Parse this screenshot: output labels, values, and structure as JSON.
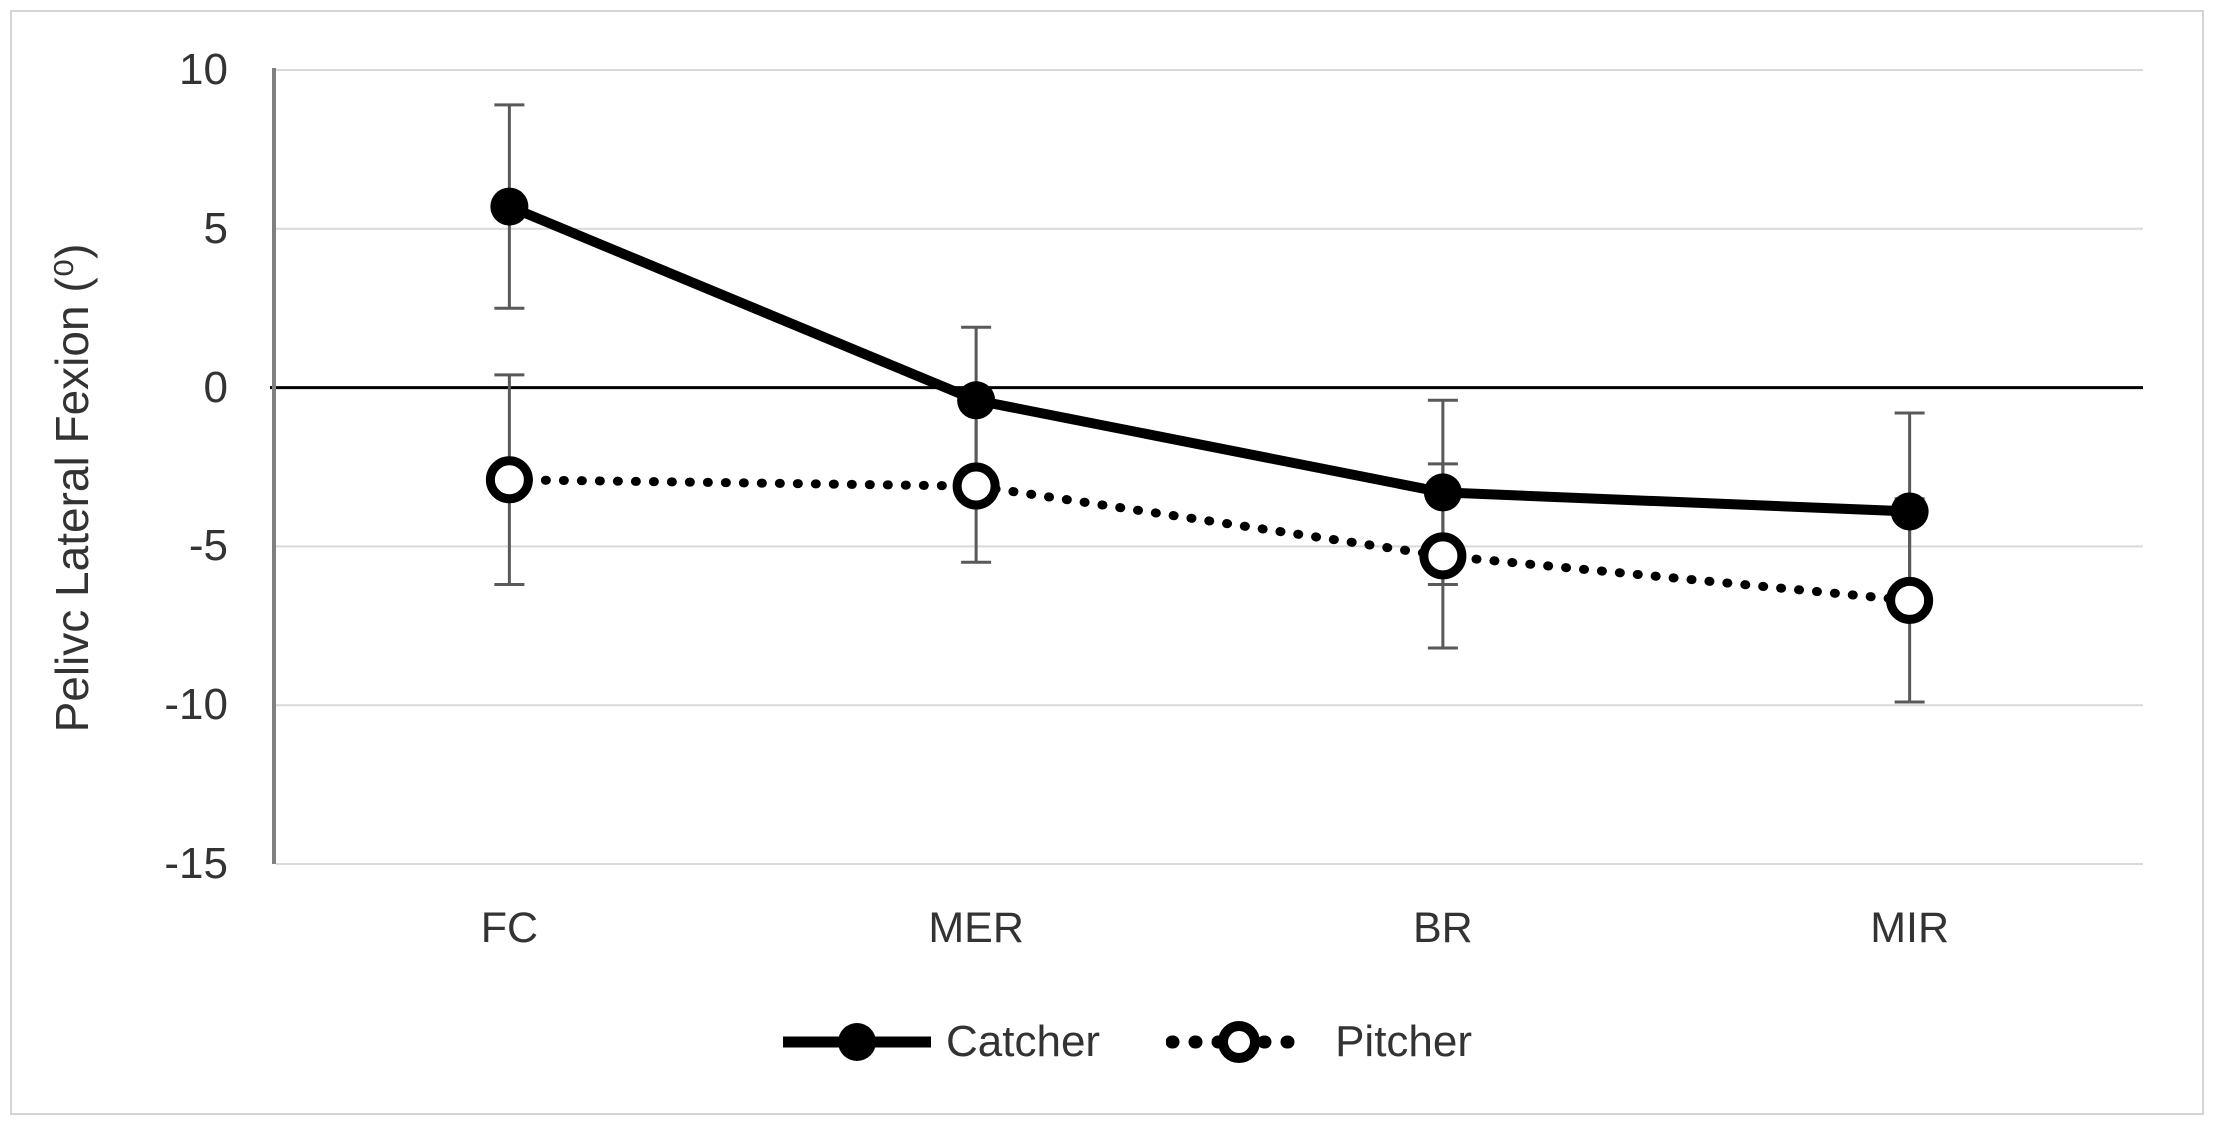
{
  "figure": {
    "ylabel": "Pelivc Lateral Fexion (⁰)",
    "x_tick_labels": [
      "FC",
      "MER",
      "BR",
      "MIR"
    ],
    "y_tick_labels": [
      "10",
      "5",
      "0",
      "-5",
      "-10",
      "-15"
    ]
  },
  "legend": {
    "items": [
      {
        "label": "Catcher",
        "line": "solid",
        "marker": "filled-circle"
      },
      {
        "label": "Pitcher",
        "line": "dotted",
        "marker": "open-circle"
      }
    ]
  },
  "colors": {
    "series": "#000000",
    "gridline": "#d9d9d9",
    "zero_line": "#000000",
    "axis_line": "#808080",
    "error_bar": "#595959",
    "text": "#333333",
    "frame_border": "#d4d4d4",
    "background": "#ffffff"
  },
  "chart_data": {
    "type": "line",
    "categories": [
      "FC",
      "MER",
      "BR",
      "MIR"
    ],
    "series": [
      {
        "name": "Catcher",
        "values": [
          5.7,
          -0.4,
          -3.3,
          -3.9
        ],
        "error_bars": [
          3.2,
          2.3,
          2.9,
          3.1
        ],
        "line_style": "solid",
        "marker": "filled-circle"
      },
      {
        "name": "Pitcher",
        "values": [
          -2.9,
          -3.1,
          -5.3,
          -6.7
        ],
        "error_bars": [
          3.3,
          2.4,
          2.9,
          3.2
        ],
        "line_style": "dotted",
        "marker": "open-circle"
      }
    ],
    "title": "",
    "xlabel": "",
    "ylabel": "Pelivc Lateral Fexion (⁰)",
    "ylim": [
      -15,
      10
    ],
    "yticks": [
      10,
      5,
      0,
      -5,
      -10,
      -15
    ],
    "grid": "horizontal",
    "zero_line": true,
    "legend_position": "bottom"
  }
}
